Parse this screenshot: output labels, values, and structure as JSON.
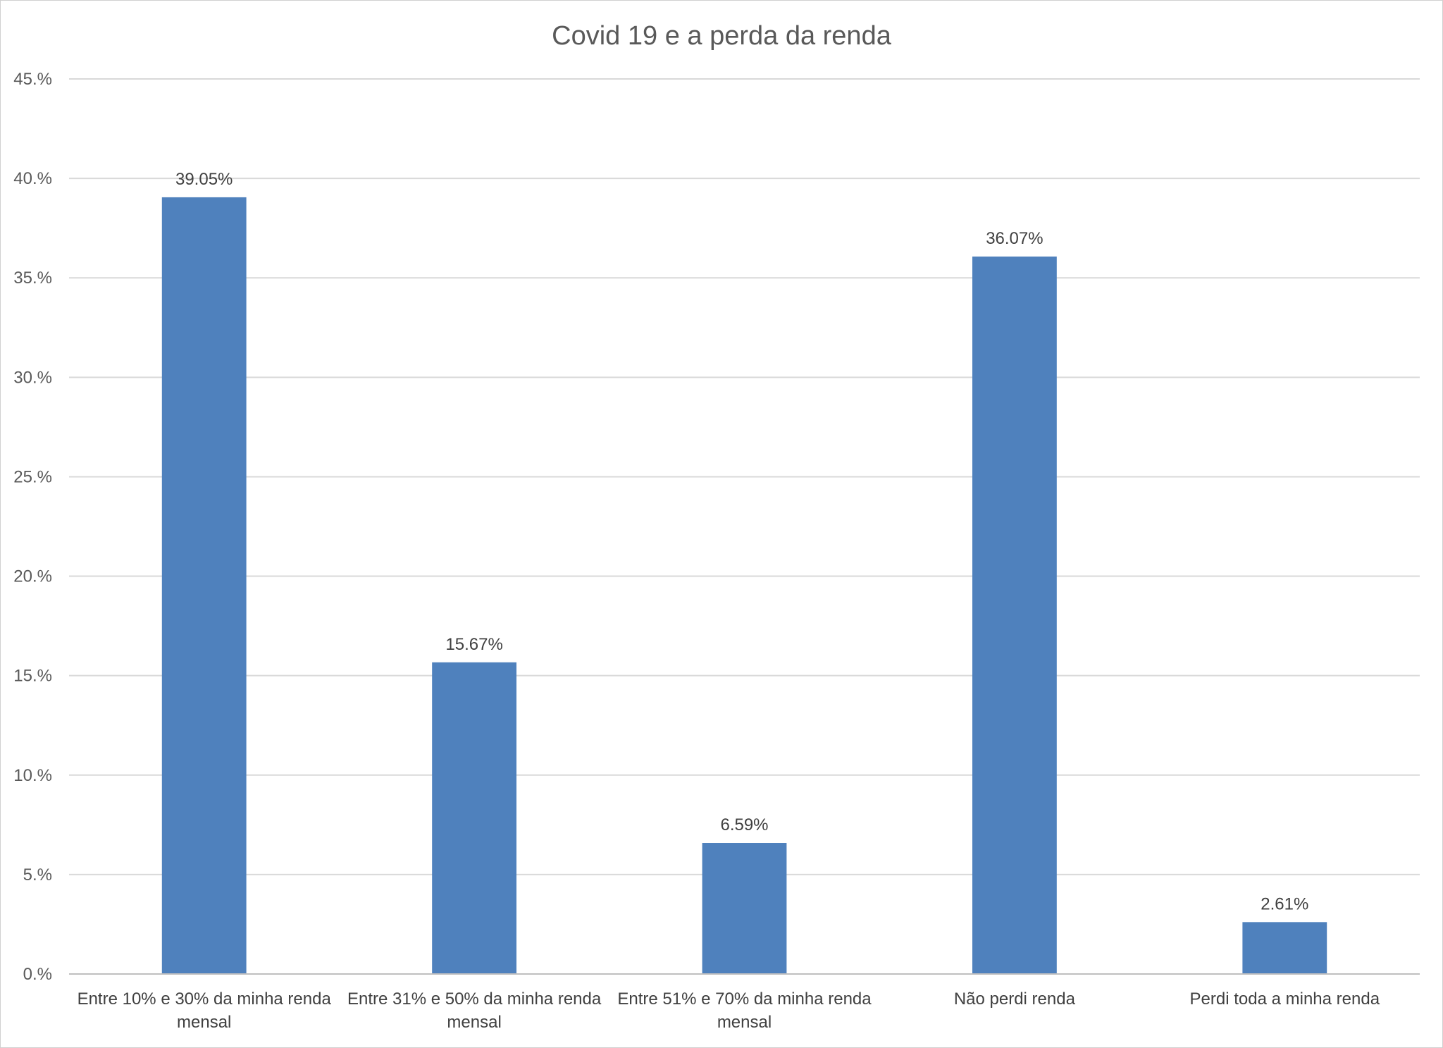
{
  "chart_data": {
    "type": "bar",
    "title": "Covid 19 e a perda da renda",
    "xlabel": "",
    "ylabel": "",
    "categories": [
      [
        "Entre 10% e 30% da minha renda",
        "mensal"
      ],
      [
        "Entre 31% e 50% da minha renda",
        "mensal"
      ],
      [
        "Entre 51% e 70% da minha renda",
        "mensal"
      ],
      [
        "Não perdi renda"
      ],
      [
        "Perdi toda a minha renda"
      ]
    ],
    "values": [
      39.05,
      15.67,
      6.59,
      36.07,
      2.61
    ],
    "data_labels": [
      "39.05%",
      "15.67%",
      "6.59%",
      "36.07%",
      "2.61%"
    ],
    "ylim": [
      0,
      45
    ],
    "yticks": [
      0,
      5,
      10,
      15,
      20,
      25,
      30,
      35,
      40,
      45
    ],
    "ytick_labels": [
      "0.%",
      "5.%",
      "10.%",
      "15.%",
      "20.%",
      "25.%",
      "30.%",
      "35.%",
      "40.%",
      "45.%"
    ],
    "grid": true,
    "legend": "none",
    "colors": {
      "bar": "#4f81bd"
    }
  }
}
